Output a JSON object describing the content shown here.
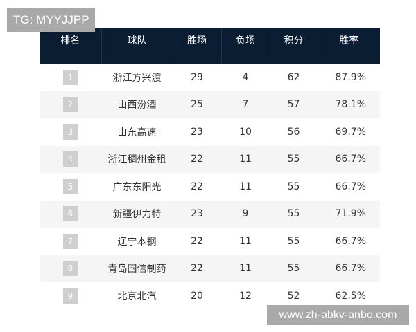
{
  "watermarks": {
    "top": "TG: MYYJJPP",
    "bottom": "www.zh-abkv-anbo.com"
  },
  "table": {
    "headers": [
      "排名",
      "球队",
      "胜场",
      "负场",
      "积分",
      "胜率"
    ],
    "rows": [
      {
        "rank": "1",
        "team": "浙江方兴渡",
        "wins": "29",
        "losses": "4",
        "points": "62",
        "rate": "87.9%"
      },
      {
        "rank": "2",
        "team": "山西汾酒",
        "wins": "25",
        "losses": "7",
        "points": "57",
        "rate": "78.1%"
      },
      {
        "rank": "3",
        "team": "山东高速",
        "wins": "23",
        "losses": "10",
        "points": "56",
        "rate": "69.7%"
      },
      {
        "rank": "4",
        "team": "浙江稠州金租",
        "wins": "22",
        "losses": "11",
        "points": "55",
        "rate": "66.7%"
      },
      {
        "rank": "5",
        "team": "广东东阳光",
        "wins": "22",
        "losses": "11",
        "points": "55",
        "rate": "66.7%"
      },
      {
        "rank": "6",
        "team": "新疆伊力特",
        "wins": "23",
        "losses": "9",
        "points": "55",
        "rate": "71.9%"
      },
      {
        "rank": "7",
        "team": "辽宁本钢",
        "wins": "22",
        "losses": "11",
        "points": "55",
        "rate": "66.7%"
      },
      {
        "rank": "8",
        "team": "青岛国信制药",
        "wins": "22",
        "losses": "11",
        "points": "55",
        "rate": "66.7%"
      },
      {
        "rank": "9",
        "team": "北京北汽",
        "wins": "20",
        "losses": "12",
        "points": "52",
        "rate": "62.5%"
      }
    ]
  },
  "colors": {
    "header_bg": "#0b1d33",
    "alt_row": "#f5f5f5",
    "rank_badge": "#cfcfcf",
    "watermark_bg": "#a9a9a9"
  }
}
